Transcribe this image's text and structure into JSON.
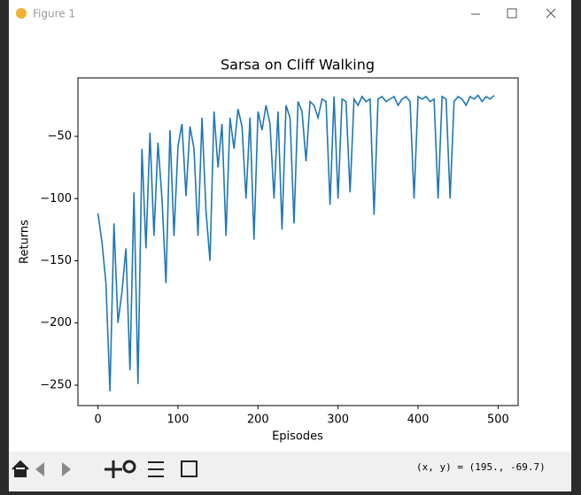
{
  "window": {
    "title": "Figure 1"
  },
  "status": "(x, y) = (195., -69.7)",
  "chart_data": {
    "type": "line",
    "title": "Sarsa on Cliff Walking",
    "x_label": "Episodes",
    "y_label": "Returns",
    "x": [
      0,
      5,
      10,
      15,
      20,
      25,
      30,
      35,
      40,
      45,
      50,
      55,
      60,
      65,
      70,
      75,
      80,
      85,
      90,
      95,
      100,
      105,
      110,
      115,
      120,
      125,
      130,
      135,
      140,
      145,
      150,
      155,
      160,
      165,
      170,
      175,
      180,
      185,
      190,
      195,
      200,
      205,
      210,
      215,
      220,
      225,
      230,
      235,
      240,
      245,
      250,
      255,
      260,
      265,
      270,
      275,
      280,
      285,
      290,
      295,
      300,
      305,
      310,
      315,
      320,
      325,
      330,
      335,
      340,
      345,
      350,
      355,
      360,
      365,
      370,
      375,
      380,
      385,
      390,
      395,
      400,
      405,
      410,
      415,
      420,
      425,
      430,
      435,
      440,
      445,
      450,
      455,
      460,
      465,
      470,
      475,
      480,
      485,
      490,
      495
    ],
    "series": [
      {
        "name": "Sarsa",
        "color": "#1f77b4",
        "values": [
          -112,
          -135,
          -168,
          -255,
          -120,
          -200,
          -175,
          -140,
          -238,
          -95,
          -249,
          -60,
          -140,
          -47,
          -130,
          -55,
          -100,
          -168,
          -45,
          -130,
          -58,
          -40,
          -98,
          -42,
          -60,
          -130,
          -35,
          -110,
          -150,
          -30,
          -75,
          -40,
          -130,
          -35,
          -60,
          -28,
          -42,
          -100,
          -35,
          -133,
          -30,
          -45,
          -25,
          -40,
          -100,
          -30,
          -125,
          -25,
          -35,
          -120,
          -22,
          -30,
          -70,
          -22,
          -25,
          -35,
          -20,
          -22,
          -105,
          -18,
          -100,
          -20,
          -22,
          -95,
          -20,
          -25,
          -18,
          -22,
          -20,
          -113,
          -20,
          -18,
          -22,
          -20,
          -18,
          -25,
          -20,
          -18,
          -22,
          -100,
          -18,
          -20,
          -18,
          -22,
          -20,
          -100,
          -18,
          -20,
          -100,
          -22,
          -18,
          -20,
          -25,
          -18,
          -20,
          -17,
          -22,
          -18,
          -20,
          -17
        ]
      }
    ],
    "xlim": [
      -25,
      525
    ],
    "ylim": [
      -266.4,
      -3
    ],
    "xticks": [
      0,
      100,
      200,
      300,
      400,
      500
    ],
    "yticks": [
      {
        "value": -250,
        "label": "−250"
      },
      {
        "value": -200,
        "label": "−200"
      },
      {
        "value": -150,
        "label": "−150"
      },
      {
        "value": -100,
        "label": "−100"
      },
      {
        "value": -50,
        "label": "−50"
      }
    ]
  }
}
